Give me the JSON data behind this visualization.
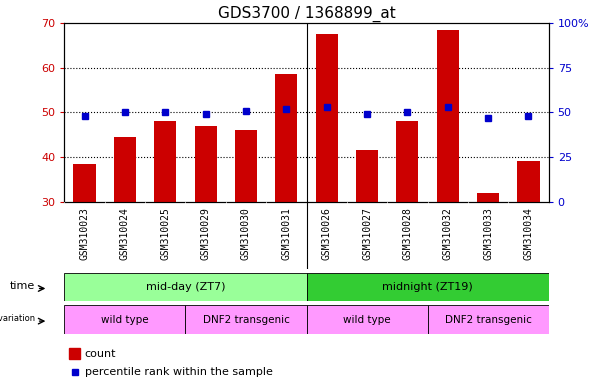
{
  "title": "GDS3700 / 1368899_at",
  "samples": [
    "GSM310023",
    "GSM310024",
    "GSM310025",
    "GSM310029",
    "GSM310030",
    "GSM310031",
    "GSM310026",
    "GSM310027",
    "GSM310028",
    "GSM310032",
    "GSM310033",
    "GSM310034"
  ],
  "counts": [
    38.5,
    44.5,
    48.0,
    47.0,
    46.0,
    58.5,
    67.5,
    41.5,
    48.0,
    68.5,
    32.0,
    39.0
  ],
  "percentiles": [
    48,
    50,
    50,
    49,
    51,
    52,
    53,
    49,
    50,
    53,
    47,
    48
  ],
  "ylim_left": [
    30,
    70
  ],
  "ylim_right": [
    0,
    100
  ],
  "yticks_left": [
    30,
    40,
    50,
    60,
    70
  ],
  "yticks_right": [
    0,
    25,
    50,
    75,
    100
  ],
  "bar_color": "#cc0000",
  "dot_color": "#0000cc",
  "grid_color": "#000000",
  "bar_bottom": 30,
  "time_labels": [
    "mid-day (ZT7)",
    "midnight (ZT19)"
  ],
  "time_color_light": "#99ff99",
  "time_color_dark": "#33cc33",
  "genotype_labels": [
    "wild type",
    "DNF2 transgenic",
    "wild type",
    "DNF2 transgenic"
  ],
  "genotype_color": "#ff99ff",
  "legend_count_color": "#cc0000",
  "legend_dot_color": "#0000cc",
  "bg_color": "#ffffff",
  "tick_bg_color": "#d0d0d0",
  "tick_label_fontsize": 7,
  "title_fontsize": 11
}
